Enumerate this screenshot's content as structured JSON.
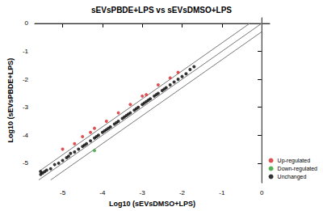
{
  "chart_data": {
    "type": "scatter",
    "title": "sEVsPBDE+LPS vs sEVsDMSO+LPS",
    "x_label": "Log10 (sEVsDMSO+LPS)",
    "y_label": "Log10 (sEVsPBDE+LPS)",
    "xlim": [
      -5.7,
      0.2
    ],
    "ylim": [
      -5.7,
      0.2
    ],
    "xticks": [
      -5,
      -4,
      -3,
      -2,
      -1,
      0
    ],
    "yticks": [
      -5,
      -4,
      -3,
      -2,
      -1,
      0
    ],
    "grid": false,
    "legend": "lower right",
    "marker": "circle",
    "series": [
      {
        "name": "Up-regulated",
        "color": "#d62728",
        "x": [
          -5.0,
          -4.7,
          -4.5,
          -4.3,
          -4.2,
          -3.9,
          -3.6,
          -3.3,
          -3.0,
          -2.9,
          -2.6,
          -2.3,
          -2.1
        ],
        "values": [
          -4.5,
          -4.3,
          -4.05,
          -3.9,
          -3.75,
          -3.5,
          -3.2,
          -2.9,
          -2.6,
          -2.55,
          -2.2,
          -1.95,
          -1.75
        ]
      },
      {
        "name": "Down-regulated",
        "color": "#2ca02c",
        "x": [
          -4.2
        ],
        "values": [
          -4.55
        ]
      },
      {
        "name": "Unchanged",
        "color": "#000000",
        "x": [
          -5.55,
          -5.55,
          -5.5,
          -5.45,
          -5.4,
          -5.3,
          -5.2,
          -5.1,
          -5.0,
          -4.9,
          -4.85,
          -4.8,
          -4.7,
          -4.6,
          -4.5,
          -4.45,
          -4.4,
          -4.3,
          -4.2,
          -4.15,
          -4.1,
          -4.0,
          -3.95,
          -3.9,
          -3.85,
          -3.8,
          -3.7,
          -3.65,
          -3.6,
          -3.5,
          -3.45,
          -3.4,
          -3.35,
          -3.3,
          -3.2,
          -3.15,
          -3.1,
          -3.0,
          -2.95,
          -2.9,
          -2.85,
          -2.8,
          -2.7,
          -2.65,
          -2.6,
          -2.5,
          -2.45,
          -2.4,
          -2.3,
          -2.2,
          -2.1,
          -2.0,
          -1.9,
          -1.8,
          -1.7
        ],
        "values": [
          -5.4,
          -5.3,
          -5.35,
          -5.3,
          -5.25,
          -5.2,
          -5.05,
          -5.0,
          -4.9,
          -4.8,
          -4.75,
          -4.65,
          -4.6,
          -4.5,
          -4.4,
          -4.35,
          -4.3,
          -4.2,
          -4.1,
          -4.05,
          -4.0,
          -3.9,
          -3.85,
          -3.8,
          -3.75,
          -3.7,
          -3.6,
          -3.55,
          -3.5,
          -3.4,
          -3.35,
          -3.3,
          -3.25,
          -3.2,
          -3.1,
          -3.05,
          -3.0,
          -2.9,
          -2.85,
          -2.8,
          -2.75,
          -2.7,
          -2.6,
          -2.55,
          -2.5,
          -2.4,
          -2.35,
          -2.3,
          -2.2,
          -2.1,
          -2.0,
          -1.9,
          -1.8,
          -1.65,
          -1.55
        ]
      }
    ],
    "reference_lines": [
      {
        "x": [
          -5.6,
          -0.3
        ],
        "values": [
          -5.3,
          0
        ]
      },
      {
        "x": [
          -5.6,
          0
        ],
        "values": [
          -5.6,
          0
        ]
      },
      {
        "x": [
          -5.3,
          0
        ],
        "values": [
          -5.6,
          -0.3
        ]
      },
      {
        "x": [
          -5.7,
          0.2
        ],
        "values": [
          0,
          0
        ]
      },
      {
        "x": [
          0,
          0
        ],
        "values": [
          -5.7,
          0.2
        ]
      }
    ]
  }
}
